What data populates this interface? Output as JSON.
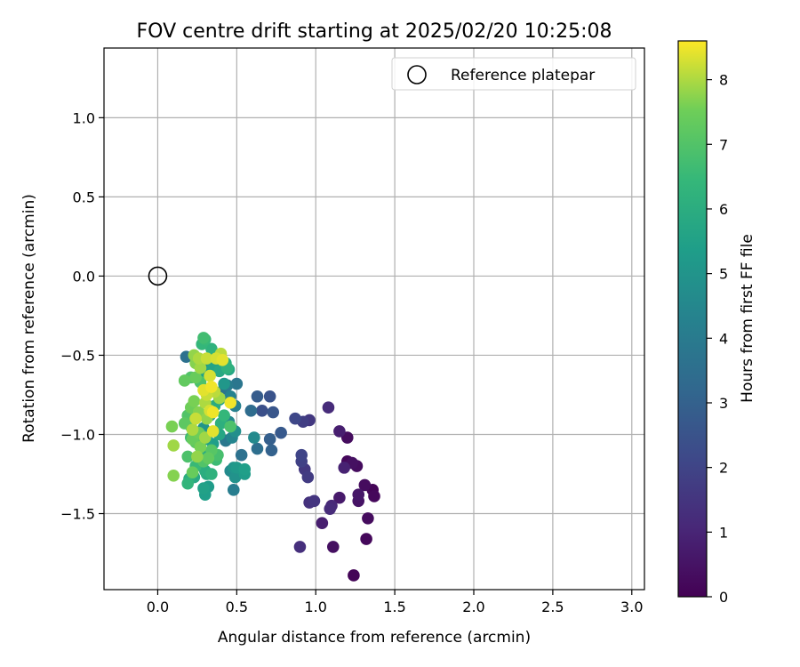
{
  "chart_data": {
    "type": "scatter",
    "title": "FOV centre drift starting at 2025/02/20 10:25:08",
    "xlabel": "Angular distance from reference (arcmin)",
    "ylabel": "Rotation from reference (arcmin)",
    "xlim": [
      -0.34,
      3.08
    ],
    "ylim": [
      -1.98,
      1.44
    ],
    "xticks": [
      0.0,
      0.5,
      1.0,
      1.5,
      2.0,
      2.5,
      3.0
    ],
    "xtick_labels": [
      "0.0",
      "0.5",
      "1.0",
      "1.5",
      "2.0",
      "2.5",
      "3.0"
    ],
    "yticks": [
      -1.5,
      -1.0,
      -0.5,
      0.0,
      0.5,
      1.0
    ],
    "ytick_labels": [
      "−1.5",
      "−1.0",
      "−0.5",
      "0.0",
      "0.5",
      "1.0"
    ],
    "grid": true,
    "legend": {
      "position": "top-right",
      "entries": [
        "Reference platepar"
      ]
    },
    "reference_point": {
      "x": 0.0,
      "y": 0.0
    },
    "colorbar": {
      "label": "Hours from first FF file",
      "colormap": "viridis",
      "range": [
        0,
        8.6
      ],
      "ticks": [
        0,
        1,
        2,
        3,
        4,
        5,
        6,
        7,
        8
      ],
      "tick_labels": [
        "0",
        "1",
        "2",
        "3",
        "4",
        "5",
        "6",
        "7",
        "8"
      ]
    },
    "series": [
      {
        "points": [
          [
            1.24,
            -1.89,
            0.1
          ],
          [
            1.32,
            -1.66,
            0.2
          ],
          [
            1.11,
            -1.71,
            0.4
          ],
          [
            1.33,
            -1.53,
            0.3
          ],
          [
            1.37,
            -1.39,
            0.2
          ],
          [
            1.36,
            -1.35,
            0.1
          ],
          [
            1.31,
            -1.32,
            0.3
          ],
          [
            1.27,
            -1.42,
            0.5
          ],
          [
            1.27,
            -1.38,
            0.6
          ],
          [
            1.2,
            -1.17,
            0.2
          ],
          [
            1.23,
            -1.18,
            0.4
          ],
          [
            1.26,
            -1.2,
            0.3
          ],
          [
            1.15,
            -0.98,
            0.8
          ],
          [
            1.2,
            -1.02,
            0.3
          ],
          [
            1.18,
            -1.21,
            0.9
          ],
          [
            1.15,
            -1.4,
            0.7
          ],
          [
            1.04,
            -1.56,
            0.8
          ],
          [
            1.09,
            -1.47,
            1.2
          ],
          [
            1.1,
            -1.45,
            1.1
          ],
          [
            0.9,
            -1.71,
            1.3
          ],
          [
            0.96,
            -1.43,
            1.4
          ],
          [
            0.99,
            -1.42,
            1.5
          ],
          [
            0.93,
            -1.22,
            1.6
          ],
          [
            0.95,
            -1.27,
            1.7
          ],
          [
            0.91,
            -1.17,
            1.9
          ],
          [
            0.91,
            -1.13,
            2.0
          ],
          [
            0.92,
            -0.92,
            1.8
          ],
          [
            0.96,
            -0.91,
            1.6
          ],
          [
            0.87,
            -0.9,
            2.1
          ],
          [
            1.08,
            -0.83,
            1.2
          ],
          [
            0.78,
            -0.99,
            2.7
          ],
          [
            0.71,
            -1.03,
            2.9
          ],
          [
            0.72,
            -1.1,
            3.0
          ],
          [
            0.73,
            -0.86,
            2.6
          ],
          [
            0.71,
            -0.76,
            2.5
          ],
          [
            0.66,
            -0.85,
            2.4
          ],
          [
            0.63,
            -0.76,
            2.8
          ],
          [
            0.59,
            -0.85,
            3.4
          ],
          [
            0.63,
            -1.09,
            3.5
          ],
          [
            0.53,
            -1.13,
            3.6
          ],
          [
            0.61,
            -1.02,
            4.6
          ],
          [
            0.5,
            -0.68,
            3.8
          ],
          [
            0.49,
            -0.82,
            4.2
          ],
          [
            0.44,
            -0.69,
            4.0
          ],
          [
            0.42,
            -0.71,
            3.7
          ],
          [
            0.46,
            -0.76,
            4.3
          ],
          [
            0.45,
            -0.92,
            4.5
          ],
          [
            0.49,
            -0.98,
            4.8
          ],
          [
            0.47,
            -1.02,
            4.4
          ],
          [
            0.43,
            -1.04,
            3.9
          ],
          [
            0.46,
            -1.23,
            4.6
          ],
          [
            0.48,
            -1.21,
            5.0
          ],
          [
            0.5,
            -1.21,
            5.2
          ],
          [
            0.49,
            -1.27,
            4.9
          ],
          [
            0.48,
            -1.35,
            4.1
          ],
          [
            0.55,
            -1.25,
            5.3
          ],
          [
            0.55,
            -1.22,
            5.4
          ],
          [
            0.18,
            -0.51,
            3.6
          ],
          [
            0.31,
            -0.56,
            4.9
          ],
          [
            0.3,
            -0.61,
            5.5
          ],
          [
            0.35,
            -0.57,
            5.6
          ],
          [
            0.39,
            -0.6,
            5.8
          ],
          [
            0.43,
            -0.55,
            6.0
          ],
          [
            0.44,
            -0.58,
            6.2
          ],
          [
            0.45,
            -0.59,
            5.7
          ],
          [
            0.42,
            -0.68,
            5.1
          ],
          [
            0.39,
            -0.78,
            5.3
          ],
          [
            0.36,
            -0.82,
            5.9
          ],
          [
            0.33,
            -0.88,
            5.2
          ],
          [
            0.29,
            -0.96,
            5.0
          ],
          [
            0.27,
            -1.0,
            6.3
          ],
          [
            0.31,
            -1.03,
            5.5
          ],
          [
            0.35,
            -1.06,
            5.4
          ],
          [
            0.39,
            -1.0,
            5.7
          ],
          [
            0.4,
            -0.93,
            6.1
          ],
          [
            0.42,
            -0.88,
            6.4
          ],
          [
            0.32,
            -1.12,
            5.6
          ],
          [
            0.28,
            -1.15,
            6.1
          ],
          [
            0.24,
            -1.2,
            6.5
          ],
          [
            0.23,
            -1.27,
            5.8
          ],
          [
            0.2,
            -1.28,
            6.0
          ],
          [
            0.19,
            -1.31,
            6.3
          ],
          [
            0.29,
            -1.34,
            5.5
          ],
          [
            0.3,
            -1.38,
            5.4
          ],
          [
            0.32,
            -1.33,
            5.3
          ],
          [
            0.3,
            -1.23,
            6.0
          ],
          [
            0.31,
            -1.25,
            5.9
          ],
          [
            0.34,
            -1.25,
            6.2
          ],
          [
            0.37,
            -1.16,
            6.6
          ],
          [
            0.38,
            -1.13,
            6.8
          ],
          [
            0.21,
            -1.02,
            6.7
          ],
          [
            0.21,
            -0.95,
            6.8
          ],
          [
            0.19,
            -0.88,
            7.0
          ],
          [
            0.17,
            -0.93,
            7.2
          ],
          [
            0.17,
            -0.66,
            7.3
          ],
          [
            0.21,
            -0.64,
            7.0
          ],
          [
            0.24,
            -0.64,
            7.4
          ],
          [
            0.27,
            -0.67,
            6.9
          ],
          [
            0.29,
            -0.39,
            6.7
          ],
          [
            0.3,
            -0.4,
            6.5
          ],
          [
            0.28,
            -0.43,
            6.4
          ],
          [
            0.34,
            -0.46,
            6.2
          ],
          [
            0.23,
            -0.5,
            7.8
          ],
          [
            0.26,
            -0.52,
            8.0
          ],
          [
            0.24,
            -0.55,
            7.7
          ],
          [
            0.27,
            -0.58,
            7.9
          ],
          [
            0.31,
            -0.52,
            8.2
          ],
          [
            0.37,
            -0.52,
            8.3
          ],
          [
            0.4,
            -0.49,
            8.1
          ],
          [
            0.41,
            -0.53,
            8.4
          ],
          [
            0.33,
            -0.63,
            8.3
          ],
          [
            0.34,
            -0.7,
            8.5
          ],
          [
            0.29,
            -0.72,
            8.4
          ],
          [
            0.31,
            -0.75,
            8.2
          ],
          [
            0.36,
            -0.73,
            8.1
          ],
          [
            0.39,
            -0.77,
            7.9
          ],
          [
            0.23,
            -0.79,
            7.6
          ],
          [
            0.21,
            -0.83,
            7.5
          ],
          [
            0.26,
            -0.86,
            7.7
          ],
          [
            0.33,
            -0.85,
            8.3
          ],
          [
            0.35,
            -0.86,
            8.5
          ],
          [
            0.31,
            -0.9,
            7.8
          ],
          [
            0.24,
            -0.9,
            8.2
          ],
          [
            0.22,
            -0.97,
            8.0
          ],
          [
            0.26,
            -0.99,
            7.5
          ],
          [
            0.22,
            -1.03,
            7.4
          ],
          [
            0.24,
            -1.05,
            7.2
          ],
          [
            0.27,
            -1.08,
            7.6
          ],
          [
            0.3,
            -1.02,
            7.9
          ],
          [
            0.35,
            -0.98,
            8.4
          ],
          [
            0.34,
            -1.1,
            7.1
          ],
          [
            0.32,
            -1.15,
            7.3
          ],
          [
            0.29,
            -1.17,
            7.0
          ],
          [
            0.25,
            -1.14,
            7.8
          ],
          [
            0.09,
            -0.95,
            7.6
          ],
          [
            0.1,
            -1.07,
            7.9
          ],
          [
            0.1,
            -1.26,
            7.7
          ],
          [
            0.22,
            -1.24,
            7.4
          ],
          [
            0.19,
            -1.14,
            6.9
          ],
          [
            0.46,
            -0.8,
            8.5
          ],
          [
            0.46,
            -0.95,
            6.9
          ],
          [
            0.3,
            -0.8,
            8.0
          ]
        ]
      }
    ]
  }
}
